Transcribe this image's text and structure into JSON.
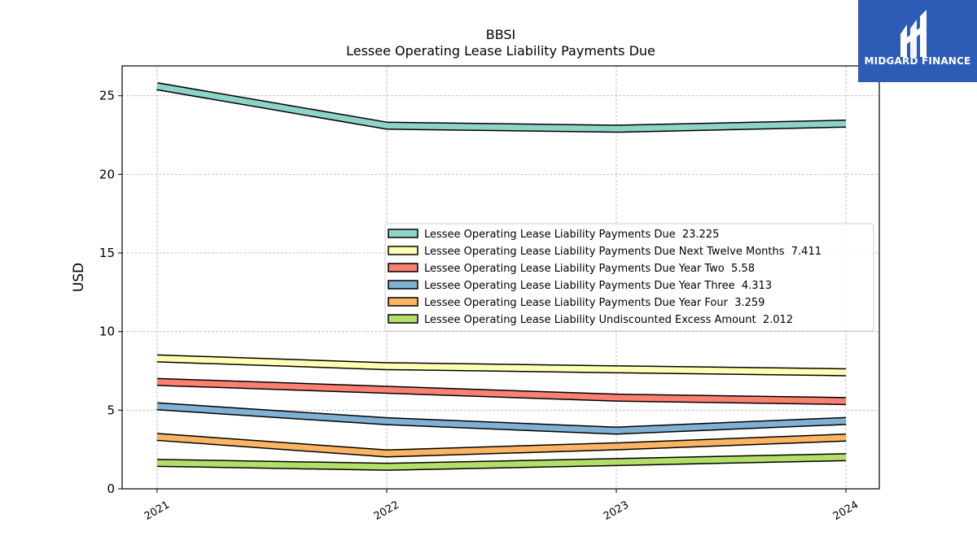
{
  "logo": {
    "text": "MIDGARD FINANCE",
    "background": "#2d5bb5"
  },
  "chart_data": {
    "type": "line",
    "title": "BBSI",
    "subtitle": "Lessee Operating Lease Liability Payments Due",
    "xlabel": "",
    "ylabel": "USD",
    "categories": [
      "2021",
      "2022",
      "2023",
      "2024"
    ],
    "ylim": [
      0,
      26.9
    ],
    "yticks": [
      0,
      5,
      10,
      15,
      20,
      25
    ],
    "grid": true,
    "legend_position": "center-right",
    "series": [
      {
        "name": "Lessee Operating Lease Liability Payments Due  23.225",
        "color": "#8dd3c7",
        "values": [
          25.6,
          23.1,
          22.9,
          23.225
        ]
      },
      {
        "name": "Lessee Operating Lease Liability Payments Due Next Twelve Months  7.411",
        "color": "#ffffb3",
        "values": [
          8.3,
          7.8,
          7.6,
          7.411
        ]
      },
      {
        "name": "Lessee Operating Lease Liability Payments Due Year Two  5.58",
        "color": "#fb8072",
        "values": [
          6.8,
          6.3,
          5.8,
          5.58
        ]
      },
      {
        "name": "Lessee Operating Lease Liability Payments Due Year Three  4.313",
        "color": "#80b1d3",
        "values": [
          5.25,
          4.3,
          3.7,
          4.313
        ]
      },
      {
        "name": "Lessee Operating Lease Liability Payments Due Year Four  3.259",
        "color": "#fdb462",
        "values": [
          3.3,
          2.25,
          2.7,
          3.259
        ]
      },
      {
        "name": "Lessee Operating Lease Liability Undiscounted Excess Amount  2.012",
        "color": "#b3de69",
        "values": [
          1.65,
          1.4,
          1.7,
          2.012
        ]
      }
    ]
  }
}
